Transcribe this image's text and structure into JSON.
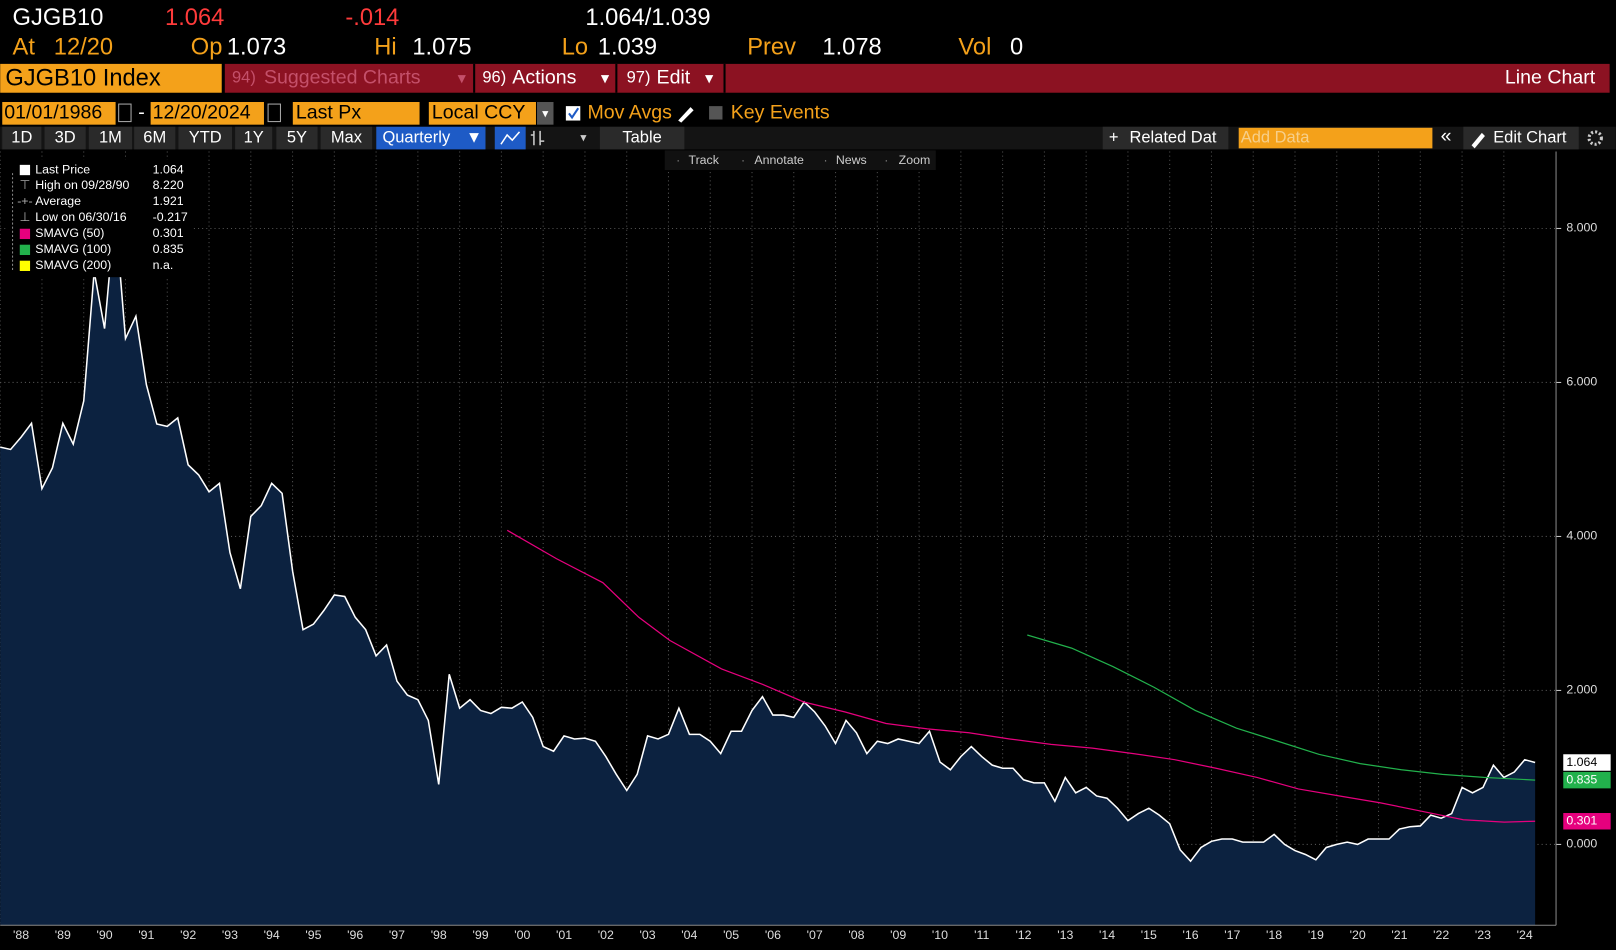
{
  "header": {
    "ticker": "GJGB10",
    "last": "1.064",
    "change": "-.014",
    "range": "1.064/1.039",
    "fields": [
      {
        "label": "At",
        "value": "12/20"
      },
      {
        "label": "Op",
        "value": "1.073"
      },
      {
        "label": "Hi",
        "value": "1.075"
      },
      {
        "label": "Lo",
        "value": "1.039"
      },
      {
        "label": "Prev",
        "value": "1.078"
      },
      {
        "label": "Vol",
        "value": "0"
      }
    ]
  },
  "menu": {
    "security": "GJGB10 Index",
    "items": [
      {
        "num": "94)",
        "label": "Suggested Charts"
      },
      {
        "num": "96)",
        "label": "Actions"
      },
      {
        "num": "97)",
        "label": "Edit"
      }
    ],
    "chart_kind": "Line Chart"
  },
  "controls": {
    "start": "01/01/1986",
    "end": "12/20/2024",
    "field": "Last Px",
    "currency": "Local CCY",
    "mov_avgs": "Mov Avgs",
    "key_events": "Key Events"
  },
  "toolbar": {
    "ranges": [
      "1D",
      "3D",
      "1M",
      "6M",
      "YTD",
      "1Y",
      "5Y",
      "Max"
    ],
    "period": "Quarterly",
    "table": "Table",
    "related": "Related Dat",
    "add_data": "Add Data",
    "edit_chart": "Edit Chart"
  },
  "chart_tools": [
    "Track",
    "Annotate",
    "News",
    "Zoom"
  ],
  "legend": [
    {
      "value": "1.064"
    },
    {
      "label": "High on 09/28/90",
      "value": "8.220"
    },
    {
      "label": "Average",
      "value": "1.921"
    },
    {
      "label": "Low on 06/30/16",
      "value": "-0.217"
    },
    {
      "value": "0.301"
    },
    {
      "value": "0.835"
    },
    {
      "label": "SMAVG (200)",
      "value": "n.a."
    }
  ],
  "chart_data": {
    "type": "area",
    "xlim": [
      1988,
      2025.25
    ],
    "ylim": [
      -1.05,
      9.0
    ],
    "grid": true,
    "yticks": [
      {
        "value": 0,
        "label": "0.000"
      },
      {
        "value": 2,
        "label": "2.000"
      },
      {
        "value": 4,
        "label": "4.000"
      },
      {
        "value": 6,
        "label": "6.000"
      },
      {
        "value": 8,
        "label": "8.000"
      }
    ],
    "xticks": [
      {
        "value": 1988,
        "label": "'88"
      },
      {
        "value": 1989,
        "label": "'89"
      },
      {
        "value": 1990,
        "label": "'90"
      },
      {
        "value": 1991,
        "label": "'91"
      },
      {
        "value": 1992,
        "label": "'92"
      },
      {
        "value": 1993,
        "label": "'93"
      },
      {
        "value": 1994,
        "label": "'94"
      },
      {
        "value": 1995,
        "label": "'95"
      },
      {
        "value": 1996,
        "label": "'96"
      },
      {
        "value": 1997,
        "label": "'97"
      },
      {
        "value": 1998,
        "label": "'98"
      },
      {
        "value": 1999,
        "label": "'99"
      },
      {
        "value": 2000,
        "label": "'00"
      },
      {
        "value": 2001,
        "label": "'01"
      },
      {
        "value": 2002,
        "label": "'02"
      },
      {
        "value": 2003,
        "label": "'03"
      },
      {
        "value": 2004,
        "label": "'04"
      },
      {
        "value": 2005,
        "label": "'05"
      },
      {
        "value": 2006,
        "label": "'06"
      },
      {
        "value": 2007,
        "label": "'07"
      },
      {
        "value": 2008,
        "label": "'08"
      },
      {
        "value": 2009,
        "label": "'09"
      },
      {
        "value": 2010,
        "label": "'10"
      },
      {
        "value": 2011,
        "label": "'11"
      },
      {
        "value": 2012,
        "label": "'12"
      },
      {
        "value": 2013,
        "label": "'13"
      },
      {
        "value": 2014,
        "label": "'14"
      },
      {
        "value": 2015,
        "label": "'15"
      },
      {
        "value": 2016,
        "label": "'16"
      },
      {
        "value": 2017,
        "label": "'17"
      },
      {
        "value": 2018,
        "label": "'18"
      },
      {
        "value": 2019,
        "label": "'19"
      },
      {
        "value": 2020,
        "label": "'20"
      },
      {
        "value": 2021,
        "label": "'21"
      },
      {
        "value": 2022,
        "label": "'22"
      },
      {
        "value": 2023,
        "label": "'23"
      },
      {
        "value": 2024,
        "label": "'24"
      }
    ],
    "series": [
      {
        "name": "Last Price",
        "color": "#ffffff",
        "fill": "#0c2240",
        "x": [
          1988,
          1988.25,
          1988.5,
          1988.75,
          1989,
          1989.25,
          1989.5,
          1989.75,
          1990,
          1990.25,
          1990.5,
          1990.75,
          1991,
          1991.25,
          1991.5,
          1991.75,
          1992,
          1992.25,
          1992.5,
          1992.75,
          1993,
          1993.25,
          1993.5,
          1993.75,
          1994,
          1994.25,
          1994.5,
          1994.75,
          1995,
          1995.25,
          1995.5,
          1995.75,
          1996,
          1996.25,
          1996.5,
          1996.75,
          1997,
          1997.25,
          1997.5,
          1997.75,
          1998,
          1998.25,
          1998.5,
          1998.75,
          1999,
          1999.25,
          1999.5,
          1999.75,
          2000,
          2000.25,
          2000.5,
          2000.75,
          2001,
          2001.25,
          2001.5,
          2001.75,
          2002,
          2002.25,
          2002.5,
          2002.75,
          2003,
          2003.25,
          2003.5,
          2003.75,
          2004,
          2004.25,
          2004.5,
          2004.75,
          2005,
          2005.25,
          2005.5,
          2005.75,
          2006,
          2006.25,
          2006.5,
          2006.75,
          2007,
          2007.25,
          2007.5,
          2007.75,
          2008,
          2008.25,
          2008.5,
          2008.75,
          2009,
          2009.25,
          2009.5,
          2009.75,
          2010,
          2010.25,
          2010.5,
          2010.75,
          2011,
          2011.25,
          2011.5,
          2011.75,
          2012,
          2012.25,
          2012.5,
          2012.75,
          2013,
          2013.25,
          2013.5,
          2013.75,
          2014,
          2014.25,
          2014.5,
          2014.75,
          2015,
          2015.25,
          2015.5,
          2015.75,
          2016,
          2016.25,
          2016.5,
          2016.75,
          2017,
          2017.25,
          2017.5,
          2017.75,
          2018,
          2018.25,
          2018.5,
          2018.75,
          2019,
          2019.25,
          2019.5,
          2019.75,
          2020,
          2020.25,
          2020.5,
          2020.75,
          2021,
          2021.25,
          2021.5,
          2021.75,
          2022,
          2022.25,
          2022.5,
          2022.75,
          2023,
          2023.25,
          2023.5,
          2023.75,
          2024,
          2024.25,
          2024.5,
          2024.75
        ],
        "values": [
          5.16,
          5.13,
          5.29,
          5.47,
          4.62,
          4.89,
          5.47,
          5.2,
          5.76,
          7.44,
          6.7,
          8.22,
          6.57,
          6.86,
          5.97,
          5.46,
          5.43,
          5.54,
          4.93,
          4.8,
          4.58,
          4.69,
          3.79,
          3.32,
          4.26,
          4.4,
          4.69,
          4.56,
          3.55,
          2.79,
          2.86,
          3.04,
          3.24,
          3.22,
          2.95,
          2.79,
          2.45,
          2.59,
          2.12,
          1.94,
          1.88,
          1.61,
          0.78,
          2.21,
          1.77,
          1.88,
          1.74,
          1.7,
          1.78,
          1.77,
          1.85,
          1.65,
          1.27,
          1.21,
          1.41,
          1.37,
          1.38,
          1.34,
          1.14,
          0.91,
          0.7,
          0.91,
          1.41,
          1.37,
          1.43,
          1.77,
          1.43,
          1.43,
          1.34,
          1.18,
          1.47,
          1.47,
          1.74,
          1.92,
          1.68,
          1.68,
          1.65,
          1.85,
          1.72,
          1.54,
          1.31,
          1.61,
          1.45,
          1.18,
          1.34,
          1.31,
          1.37,
          1.34,
          1.31,
          1.47,
          1.07,
          0.97,
          1.14,
          1.27,
          1.14,
          1.03,
          0.99,
          0.99,
          0.84,
          0.8,
          0.8,
          0.56,
          0.87,
          0.67,
          0.74,
          0.63,
          0.6,
          0.47,
          0.31,
          0.4,
          0.47,
          0.38,
          0.27,
          -0.07,
          -0.217,
          -0.04,
          0.04,
          0.07,
          0.07,
          0.03,
          0.03,
          0.03,
          0.13,
          0,
          -0.08,
          -0.13,
          -0.2,
          -0.04,
          0,
          0.03,
          0,
          0.07,
          0.07,
          0.07,
          0.2,
          0.23,
          0.24,
          0.38,
          0.34,
          0.4,
          0.74,
          0.67,
          0.74,
          1.03,
          0.87,
          0.94,
          1.1,
          1.064
        ]
      },
      {
        "name": "SMAVG (50)",
        "color": "#e6007e",
        "x": [
          2000.14,
          2001.32,
          2002.43,
          2003.29,
          2004.03,
          2005.27,
          2006.25,
          2007.24,
          2008.23,
          2009.21,
          2010.2,
          2011.19,
          2012.17,
          2013.16,
          2014.15,
          2015.13,
          2016.12,
          2017.11,
          2018.09,
          2019.08,
          2020.07,
          2021.05,
          2022.04,
          2023.03,
          2024.01,
          2024.75
        ],
        "values": [
          4.08,
          3.71,
          3.4,
          2.95,
          2.65,
          2.28,
          2.08,
          1.85,
          1.72,
          1.57,
          1.5,
          1.45,
          1.37,
          1.3,
          1.25,
          1.18,
          1.1,
          0.99,
          0.87,
          0.72,
          0.63,
          0.54,
          0.43,
          0.32,
          0.29,
          0.301
        ]
      },
      {
        "name": "SMAVG (100)",
        "color": "#22b14c",
        "x": [
          2012.59,
          2013.65,
          2014.64,
          2015.63,
          2016.61,
          2017.6,
          2018.59,
          2019.57,
          2020.56,
          2021.55,
          2022.53,
          2023.52,
          2024.75
        ],
        "values": [
          2.72,
          2.55,
          2.31,
          2.04,
          1.74,
          1.51,
          1.34,
          1.17,
          1.05,
          0.97,
          0.91,
          0.87,
          0.835
        ]
      }
    ]
  }
}
